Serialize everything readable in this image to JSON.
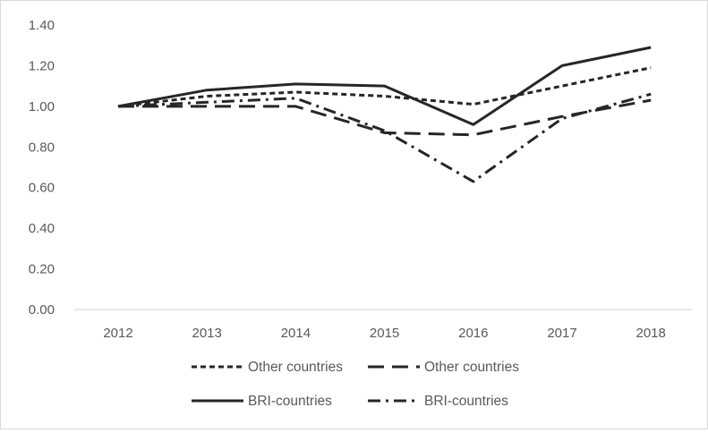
{
  "chart_data": {
    "type": "line",
    "title": "",
    "xlabel": "",
    "ylabel": "",
    "categories": [
      "2012",
      "2013",
      "2014",
      "2015",
      "2016",
      "2017",
      "2018"
    ],
    "ylim": [
      0,
      1.4
    ],
    "yticks": [
      "0.00",
      "0.20",
      "0.40",
      "0.60",
      "0.80",
      "1.00",
      "1.20",
      "1.40"
    ],
    "grid": false,
    "legend_position": "bottom",
    "series": [
      {
        "name": "Other countries",
        "style": "dotted",
        "values": [
          1.0,
          1.05,
          1.07,
          1.05,
          1.01,
          1.1,
          1.19
        ]
      },
      {
        "name": "Other countries",
        "style": "dashed",
        "values": [
          1.0,
          1.0,
          1.0,
          0.87,
          0.86,
          0.95,
          1.03
        ]
      },
      {
        "name": "BRI-countries",
        "style": "solid",
        "values": [
          1.0,
          1.08,
          1.11,
          1.1,
          0.91,
          1.2,
          1.29
        ]
      },
      {
        "name": "BRI-countries",
        "style": "dashdot",
        "values": [
          1.0,
          1.02,
          1.04,
          0.88,
          0.63,
          0.94,
          1.06
        ]
      }
    ],
    "colors": {
      "line": "#262626",
      "axis": "#d9d9d9",
      "text": "#595959"
    }
  }
}
